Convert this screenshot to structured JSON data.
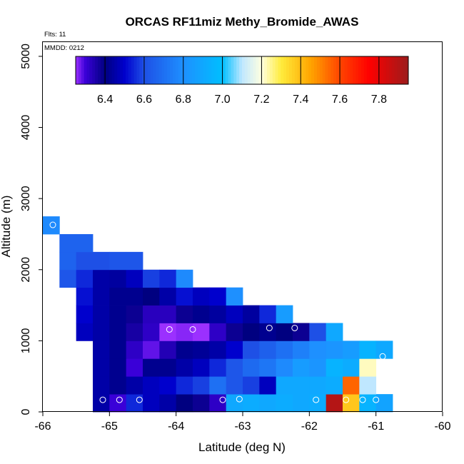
{
  "chart_data": {
    "type": "heatmap",
    "title": "ORCAS RF11miz Methy_Bromide_AWAS",
    "annotations": {
      "flights": "Flts: 11",
      "date": "MMDD: 0212"
    },
    "xlabel": "Latitude (deg N)",
    "ylabel": "Altitude (m)",
    "xlim": [
      -66,
      -60
    ],
    "ylim": [
      0,
      5200
    ],
    "x_ticks": [
      -66,
      -65,
      -64,
      -63,
      -62,
      -61,
      -60
    ],
    "x_tick_labels": [
      "-66",
      "-65",
      "-64",
      "-63",
      "-62",
      "-61",
      "-60"
    ],
    "y_ticks": [
      0,
      1000,
      2000,
      3000,
      4000,
      5000
    ],
    "y_tick_labels": [
      "0",
      "1000",
      "2000",
      "3000",
      "4000",
      "5000"
    ],
    "grid": false,
    "cell_width_deg": 0.25,
    "cell_height_m": 250,
    "colorbar": {
      "min": 6.25,
      "max": 7.95,
      "ticks": [
        6.4,
        6.6,
        6.8,
        7.0,
        7.2,
        7.4,
        7.6,
        7.8
      ],
      "tick_labels": [
        "6.4",
        "6.6",
        "6.8",
        "7.0",
        "7.2",
        "7.4",
        "7.6",
        "7.8"
      ],
      "stops": [
        [
          6.25,
          "#9b30ff"
        ],
        [
          6.3,
          "#3a00d8"
        ],
        [
          6.4,
          "#000080"
        ],
        [
          6.5,
          "#0000cd"
        ],
        [
          6.6,
          "#1e50e6"
        ],
        [
          6.8,
          "#1e90ff"
        ],
        [
          7.0,
          "#00bfff"
        ],
        [
          7.1,
          "#bfe7ff"
        ],
        [
          7.2,
          "#ffffe0"
        ],
        [
          7.3,
          "#ffec3c"
        ],
        [
          7.45,
          "#ffa500"
        ],
        [
          7.6,
          "#ff4500"
        ],
        [
          7.75,
          "#ff0000"
        ],
        [
          7.95,
          "#9b1c1c"
        ]
      ]
    },
    "cells": [
      {
        "lon": -65.25,
        "alt": 0,
        "value": 6.45
      },
      {
        "lon": -65.0,
        "alt": 0,
        "value": 6.3
      },
      {
        "lon": -64.75,
        "alt": 0,
        "value": 6.55
      },
      {
        "lon": -64.5,
        "alt": 0,
        "value": 6.48
      },
      {
        "lon": -64.25,
        "alt": 0,
        "value": 6.45
      },
      {
        "lon": -64.0,
        "alt": 0,
        "value": 6.4
      },
      {
        "lon": -63.75,
        "alt": 0,
        "value": 6.38
      },
      {
        "lon": -63.5,
        "alt": 0,
        "value": 6.32
      },
      {
        "lon": -63.25,
        "alt": 0,
        "value": 6.9
      },
      {
        "lon": -63.0,
        "alt": 0,
        "value": 6.92
      },
      {
        "lon": -62.75,
        "alt": 0,
        "value": 6.9
      },
      {
        "lon": -62.5,
        "alt": 0,
        "value": 6.92
      },
      {
        "lon": -62.25,
        "alt": 0,
        "value": 6.9
      },
      {
        "lon": -62.0,
        "alt": 0,
        "value": 6.92
      },
      {
        "lon": -61.75,
        "alt": 0,
        "value": 7.9
      },
      {
        "lon": -61.5,
        "alt": 0,
        "value": 7.38
      },
      {
        "lon": -61.25,
        "alt": 0,
        "value": 6.95
      },
      {
        "lon": -61.0,
        "alt": 0,
        "value": 6.88
      },
      {
        "lon": -65.25,
        "alt": 250,
        "value": 6.45
      },
      {
        "lon": -65.0,
        "alt": 250,
        "value": 6.42
      },
      {
        "lon": -64.75,
        "alt": 250,
        "value": 6.45
      },
      {
        "lon": -64.5,
        "alt": 250,
        "value": 6.48
      },
      {
        "lon": -64.25,
        "alt": 250,
        "value": 6.5
      },
      {
        "lon": -64.0,
        "alt": 250,
        "value": 6.55
      },
      {
        "lon": -63.75,
        "alt": 250,
        "value": 6.58
      },
      {
        "lon": -63.5,
        "alt": 250,
        "value": 6.7
      },
      {
        "lon": -63.25,
        "alt": 250,
        "value": 6.62
      },
      {
        "lon": -63.0,
        "alt": 250,
        "value": 6.58
      },
      {
        "lon": -62.75,
        "alt": 250,
        "value": 6.48
      },
      {
        "lon": -62.5,
        "alt": 250,
        "value": 6.9
      },
      {
        "lon": -62.25,
        "alt": 250,
        "value": 6.9
      },
      {
        "lon": -62.0,
        "alt": 250,
        "value": 6.9
      },
      {
        "lon": -61.75,
        "alt": 250,
        "value": 6.92
      },
      {
        "lon": -61.5,
        "alt": 250,
        "value": 7.55
      },
      {
        "lon": -61.25,
        "alt": 250,
        "value": 7.1
      },
      {
        "lon": -65.25,
        "alt": 500,
        "value": 6.45
      },
      {
        "lon": -65.0,
        "alt": 500,
        "value": 6.42
      },
      {
        "lon": -64.75,
        "alt": 500,
        "value": 6.3
      },
      {
        "lon": -64.5,
        "alt": 500,
        "value": 6.42
      },
      {
        "lon": -64.25,
        "alt": 500,
        "value": 6.42
      },
      {
        "lon": -64.0,
        "alt": 500,
        "value": 6.45
      },
      {
        "lon": -63.75,
        "alt": 500,
        "value": 6.48
      },
      {
        "lon": -63.5,
        "alt": 500,
        "value": 6.55
      },
      {
        "lon": -63.25,
        "alt": 500,
        "value": 6.62
      },
      {
        "lon": -63.0,
        "alt": 500,
        "value": 6.68
      },
      {
        "lon": -62.75,
        "alt": 500,
        "value": 6.72
      },
      {
        "lon": -62.5,
        "alt": 500,
        "value": 6.78
      },
      {
        "lon": -62.25,
        "alt": 500,
        "value": 6.85
      },
      {
        "lon": -62.0,
        "alt": 500,
        "value": 6.82
      },
      {
        "lon": -61.75,
        "alt": 500,
        "value": 6.95
      },
      {
        "lon": -61.5,
        "alt": 500,
        "value": 6.92
      },
      {
        "lon": -61.25,
        "alt": 500,
        "value": 7.22
      },
      {
        "lon": -65.25,
        "alt": 750,
        "value": 6.45
      },
      {
        "lon": -65.0,
        "alt": 750,
        "value": 6.42
      },
      {
        "lon": -64.75,
        "alt": 750,
        "value": 6.32
      },
      {
        "lon": -64.5,
        "alt": 750,
        "value": 6.28
      },
      {
        "lon": -64.25,
        "alt": 750,
        "value": 6.34
      },
      {
        "lon": -64.0,
        "alt": 750,
        "value": 6.42
      },
      {
        "lon": -63.75,
        "alt": 750,
        "value": 6.43
      },
      {
        "lon": -63.5,
        "alt": 750,
        "value": 6.45
      },
      {
        "lon": -63.25,
        "alt": 750,
        "value": 6.5
      },
      {
        "lon": -63.0,
        "alt": 750,
        "value": 6.6
      },
      {
        "lon": -62.75,
        "alt": 750,
        "value": 6.65
      },
      {
        "lon": -62.5,
        "alt": 750,
        "value": 6.7
      },
      {
        "lon": -62.25,
        "alt": 750,
        "value": 6.75
      },
      {
        "lon": -62.0,
        "alt": 750,
        "value": 6.8
      },
      {
        "lon": -61.75,
        "alt": 750,
        "value": 6.82
      },
      {
        "lon": -61.5,
        "alt": 750,
        "value": 6.85
      },
      {
        "lon": -61.25,
        "alt": 750,
        "value": 6.95
      },
      {
        "lon": -61.0,
        "alt": 750,
        "value": 6.9
      },
      {
        "lon": -65.5,
        "alt": 1000,
        "value": 6.48
      },
      {
        "lon": -65.25,
        "alt": 1000,
        "value": 6.45
      },
      {
        "lon": -65.0,
        "alt": 1000,
        "value": 6.42
      },
      {
        "lon": -64.75,
        "alt": 1000,
        "value": 6.36
      },
      {
        "lon": -64.5,
        "alt": 1000,
        "value": 6.32
      },
      {
        "lon": -64.25,
        "alt": 1000,
        "value": 6.25
      },
      {
        "lon": -64.0,
        "alt": 1000,
        "value": 6.26
      },
      {
        "lon": -63.75,
        "alt": 1000,
        "value": 6.25
      },
      {
        "lon": -63.5,
        "alt": 1000,
        "value": 6.32
      },
      {
        "lon": -63.25,
        "alt": 1000,
        "value": 6.38
      },
      {
        "lon": -63.0,
        "alt": 1000,
        "value": 6.4
      },
      {
        "lon": -62.75,
        "alt": 1000,
        "value": 6.42
      },
      {
        "lon": -62.5,
        "alt": 1000,
        "value": 6.4
      },
      {
        "lon": -62.25,
        "alt": 1000,
        "value": 6.38
      },
      {
        "lon": -62.0,
        "alt": 1000,
        "value": 6.6
      },
      {
        "lon": -61.75,
        "alt": 1000,
        "value": 6.9
      },
      {
        "lon": -65.5,
        "alt": 1250,
        "value": 6.5
      },
      {
        "lon": -65.25,
        "alt": 1250,
        "value": 6.45
      },
      {
        "lon": -65.0,
        "alt": 1250,
        "value": 6.42
      },
      {
        "lon": -64.75,
        "alt": 1250,
        "value": 6.38
      },
      {
        "lon": -64.5,
        "alt": 1250,
        "value": 6.33
      },
      {
        "lon": -64.25,
        "alt": 1250,
        "value": 6.33
      },
      {
        "lon": -64.0,
        "alt": 1250,
        "value": 6.38
      },
      {
        "lon": -63.75,
        "alt": 1250,
        "value": 6.42
      },
      {
        "lon": -63.5,
        "alt": 1250,
        "value": 6.44
      },
      {
        "lon": -63.25,
        "alt": 1250,
        "value": 6.48
      },
      {
        "lon": -63.0,
        "alt": 1250,
        "value": 6.44
      },
      {
        "lon": -62.75,
        "alt": 1250,
        "value": 6.55
      },
      {
        "lon": -62.5,
        "alt": 1250,
        "value": 6.85
      },
      {
        "lon": -65.5,
        "alt": 1500,
        "value": 6.52
      },
      {
        "lon": -65.25,
        "alt": 1500,
        "value": 6.45
      },
      {
        "lon": -65.0,
        "alt": 1500,
        "value": 6.42
      },
      {
        "lon": -64.75,
        "alt": 1500,
        "value": 6.42
      },
      {
        "lon": -64.5,
        "alt": 1500,
        "value": 6.4
      },
      {
        "lon": -64.25,
        "alt": 1500,
        "value": 6.45
      },
      {
        "lon": -64.0,
        "alt": 1500,
        "value": 6.52
      },
      {
        "lon": -63.75,
        "alt": 1500,
        "value": 6.48
      },
      {
        "lon": -63.5,
        "alt": 1500,
        "value": 6.5
      },
      {
        "lon": -63.25,
        "alt": 1500,
        "value": 6.8
      },
      {
        "lon": -65.75,
        "alt": 1750,
        "value": 6.62
      },
      {
        "lon": -65.5,
        "alt": 1750,
        "value": 6.55
      },
      {
        "lon": -65.25,
        "alt": 1750,
        "value": 6.45
      },
      {
        "lon": -65.0,
        "alt": 1750,
        "value": 6.44
      },
      {
        "lon": -64.75,
        "alt": 1750,
        "value": 6.48
      },
      {
        "lon": -64.5,
        "alt": 1750,
        "value": 6.58
      },
      {
        "lon": -64.25,
        "alt": 1750,
        "value": 6.55
      },
      {
        "lon": -64.0,
        "alt": 1750,
        "value": 6.78
      },
      {
        "lon": -65.75,
        "alt": 2000,
        "value": 6.66
      },
      {
        "lon": -65.5,
        "alt": 2000,
        "value": 6.6
      },
      {
        "lon": -65.25,
        "alt": 2000,
        "value": 6.6
      },
      {
        "lon": -65.0,
        "alt": 2000,
        "value": 6.62
      },
      {
        "lon": -64.75,
        "alt": 2000,
        "value": 6.62
      },
      {
        "lon": -65.75,
        "alt": 2250,
        "value": 6.66
      },
      {
        "lon": -65.5,
        "alt": 2250,
        "value": 6.66
      },
      {
        "lon": -66.0,
        "alt": 2500,
        "value": 6.78
      }
    ],
    "markers": [
      {
        "lon": -65.1,
        "alt": 170
      },
      {
        "lon": -64.85,
        "alt": 170
      },
      {
        "lon": -64.55,
        "alt": 170
      },
      {
        "lon": -63.3,
        "alt": 170
      },
      {
        "lon": -63.05,
        "alt": 180
      },
      {
        "lon": -61.9,
        "alt": 170
      },
      {
        "lon": -61.45,
        "alt": 170
      },
      {
        "lon": -61.2,
        "alt": 170
      },
      {
        "lon": -61.0,
        "alt": 170
      },
      {
        "lon": -60.9,
        "alt": 780
      },
      {
        "lon": -64.1,
        "alt": 1160
      },
      {
        "lon": -63.75,
        "alt": 1160
      },
      {
        "lon": -62.6,
        "alt": 1180
      },
      {
        "lon": -62.22,
        "alt": 1180
      },
      {
        "lon": -65.85,
        "alt": 2630
      }
    ]
  }
}
